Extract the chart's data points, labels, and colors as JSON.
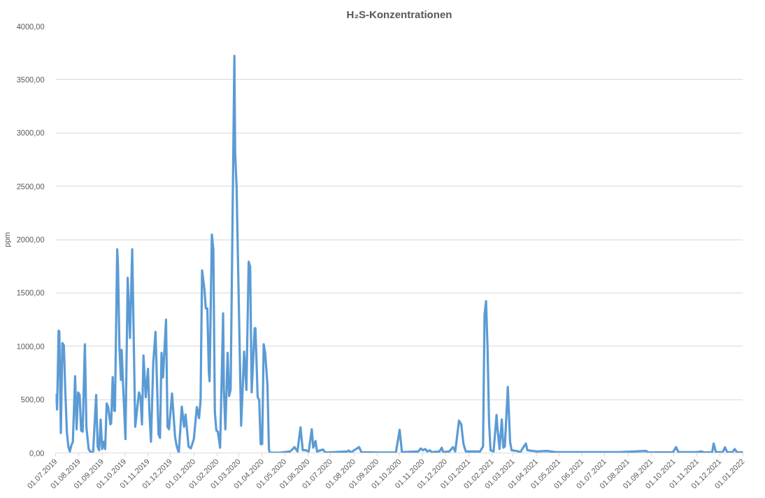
{
  "chart_data": {
    "type": "line",
    "title": "H₂S-Konzentrationen",
    "ylabel": "ppm",
    "x": [
      "2019-07-01",
      "2019-07-03",
      "2019-07-05",
      "2019-07-06",
      "2019-07-08",
      "2019-07-10",
      "2019-07-12",
      "2019-07-14",
      "2019-07-16",
      "2019-07-18",
      "2019-07-20",
      "2019-07-22",
      "2019-07-24",
      "2019-07-27",
      "2019-07-29",
      "2019-07-31",
      "2019-08-02",
      "2019-08-04",
      "2019-08-06",
      "2019-08-09",
      "2019-08-11",
      "2019-08-14",
      "2019-08-17",
      "2019-08-20",
      "2019-08-24",
      "2019-08-26",
      "2019-08-28",
      "2019-08-30",
      "2019-09-01",
      "2019-09-03",
      "2019-09-05",
      "2019-09-07",
      "2019-09-09",
      "2019-09-12",
      "2019-09-13",
      "2019-09-15",
      "2019-09-17",
      "2019-09-18",
      "2019-09-21",
      "2019-09-22",
      "2019-09-24",
      "2019-09-26",
      "2019-09-27",
      "2019-09-29",
      "2019-10-02",
      "2019-10-05",
      "2019-10-08",
      "2019-10-11",
      "2019-10-15",
      "2019-10-20",
      "2019-10-22",
      "2019-10-24",
      "2019-10-26",
      "2019-10-29",
      "2019-11-01",
      "2019-11-03",
      "2019-11-05",
      "2019-11-08",
      "2019-11-11",
      "2019-11-15",
      "2019-11-17",
      "2019-11-19",
      "2019-11-21",
      "2019-11-25",
      "2019-11-27",
      "2019-11-29",
      "2019-12-03",
      "2019-12-07",
      "2019-12-09",
      "2019-12-12",
      "2019-12-16",
      "2019-12-19",
      "2019-12-21",
      "2019-12-25",
      "2019-12-28",
      "2020-01-01",
      "2020-01-05",
      "2020-01-08",
      "2020-01-10",
      "2020-01-12",
      "2020-01-15",
      "2020-01-17",
      "2020-01-19",
      "2020-01-21",
      "2020-01-22",
      "2020-01-25",
      "2020-01-27",
      "2020-01-29",
      "2020-01-31",
      "2020-02-02",
      "2020-02-05",
      "2020-02-09",
      "2020-02-10",
      "2020-02-12",
      "2020-02-15",
      "2020-02-17",
      "2020-02-19",
      "2020-02-24",
      "2020-02-25",
      "2020-02-27",
      "2020-02-28",
      "2020-03-04",
      "2020-03-08",
      "2020-03-11",
      "2020-03-14",
      "2020-03-16",
      "2020-03-18",
      "2020-03-22",
      "2020-03-23",
      "2020-03-26",
      "2020-03-28",
      "2020-03-30",
      "2020-04-01",
      "2020-04-03",
      "2020-04-05",
      "2020-04-08",
      "2020-04-10",
      "2020-04-11",
      "2020-04-25",
      "2020-05-08",
      "2020-05-11",
      "2020-05-14",
      "2020-05-18",
      "2020-05-22",
      "2020-05-25",
      "2020-05-29",
      "2020-06-02",
      "2020-06-06",
      "2020-06-08",
      "2020-06-11",
      "2020-06-13",
      "2020-06-21",
      "2020-06-24",
      "2020-07-10",
      "2020-07-23",
      "2020-07-25",
      "2020-07-28",
      "2020-08-08",
      "2020-08-11",
      "2020-09-02",
      "2020-09-26",
      "2020-10-01",
      "2020-10-04",
      "2020-10-26",
      "2020-10-29",
      "2020-11-01",
      "2020-11-04",
      "2020-11-07",
      "2020-11-10",
      "2020-11-13",
      "2020-11-23",
      "2020-11-26",
      "2020-11-28",
      "2020-12-06",
      "2020-12-11",
      "2020-12-14",
      "2020-12-19",
      "2020-12-22",
      "2020-12-25",
      "2020-12-28",
      "2021-01-16",
      "2021-01-18",
      "2021-01-20",
      "2021-01-22",
      "2021-01-24",
      "2021-01-26",
      "2021-01-28",
      "2021-01-30",
      "2021-02-03",
      "2021-02-07",
      "2021-02-08",
      "2021-02-11",
      "2021-02-14",
      "2021-02-16",
      "2021-02-18",
      "2021-02-22",
      "2021-02-25",
      "2021-02-27",
      "2021-03-06",
      "2021-03-11",
      "2021-03-14",
      "2021-03-18",
      "2021-03-20",
      "2021-04-02",
      "2021-04-15",
      "2021-04-27",
      "2021-06-04",
      "2021-07-21",
      "2021-08-25",
      "2021-08-28",
      "2021-09-30",
      "2021-10-04",
      "2021-10-07",
      "2021-11-01",
      "2021-11-06",
      "2021-11-11",
      "2021-11-21",
      "2021-11-23",
      "2021-11-26",
      "2021-12-05",
      "2021-12-08",
      "2021-12-11",
      "2021-12-18",
      "2021-12-21",
      "2021-12-24",
      "2022-01-01"
    ],
    "series": [
      {
        "color": "#5b9bd5",
        "values": [
          545,
          407,
          1146,
          1137,
          187,
          1031,
          1007,
          568,
          199,
          60,
          14,
          72,
          106,
          719,
          222,
          568,
          545,
          210,
          199,
          1019,
          245,
          37,
          2,
          14,
          545,
          60,
          25,
          314,
          37,
          106,
          37,
          464,
          430,
          268,
          280,
          712,
          395,
          395,
          1909,
          1770,
          984,
          684,
          966,
          615,
          130,
          1643,
          1077,
          1909,
          245,
          568,
          522,
          268,
          915,
          522,
          788,
          360,
          106,
          846,
          1135,
          176,
          141,
          938,
          707,
          1250,
          245,
          222,
          557,
          153,
          72,
          2,
          434,
          245,
          360,
          60,
          42,
          130,
          430,
          326,
          499,
          1712,
          1539,
          1354,
          1354,
          753,
          672,
          2047,
          1909,
          383,
          210,
          200,
          49,
          1308,
          591,
          222,
          938,
          534,
          591,
          3722,
          2810,
          2487,
          2093,
          256,
          950,
          591,
          1793,
          1747,
          568,
          1169,
          1169,
          522,
          499,
          83,
          83,
          1019,
          938,
          638,
          37,
          2,
          2,
          14,
          32,
          55,
          14,
          240,
          25,
          25,
          14,
          222,
          49,
          111,
          14,
          32,
          5,
          9,
          14,
          23,
          5,
          55,
          7,
          5,
          5,
          217,
          7,
          14,
          42,
          25,
          37,
          14,
          25,
          7,
          14,
          49,
          7,
          14,
          55,
          14,
          303,
          268,
          83,
          14,
          14,
          37,
          60,
          1296,
          1423,
          984,
          291,
          25,
          14,
          356,
          245,
          37,
          314,
          49,
          60,
          619,
          106,
          25,
          18,
          10,
          46,
          88,
          25,
          14,
          19,
          7,
          7,
          7,
          19,
          5,
          7,
          55,
          7,
          7,
          14,
          5,
          7,
          88,
          7,
          7,
          53,
          7,
          7,
          37,
          5,
          7
        ]
      }
    ],
    "xlim": [
      "2019-07-01",
      "2022-01-01"
    ],
    "xticks": [
      {
        "value": "2019-07-01",
        "label": "01.07.2019"
      },
      {
        "value": "2019-08-01",
        "label": "01.08.2019"
      },
      {
        "value": "2019-09-01",
        "label": "01.09.2019"
      },
      {
        "value": "2019-10-01",
        "label": "01.10.2019"
      },
      {
        "value": "2019-11-01",
        "label": "01.11.2019"
      },
      {
        "value": "2019-12-01",
        "label": "01.12.2019"
      },
      {
        "value": "2020-01-01",
        "label": "01.01.2020"
      },
      {
        "value": "2020-02-01",
        "label": "01.02.2020"
      },
      {
        "value": "2020-03-01",
        "label": "01.03.2020"
      },
      {
        "value": "2020-04-01",
        "label": "01.04.2020"
      },
      {
        "value": "2020-05-01",
        "label": "01.05.2020"
      },
      {
        "value": "2020-06-01",
        "label": "01.06.2020"
      },
      {
        "value": "2020-07-01",
        "label": "01.07.2020"
      },
      {
        "value": "2020-08-01",
        "label": "01.08.2020"
      },
      {
        "value": "2020-09-01",
        "label": "01.09.2020"
      },
      {
        "value": "2020-10-01",
        "label": "01.10.2020"
      },
      {
        "value": "2020-11-01",
        "label": "01.11.2020"
      },
      {
        "value": "2020-12-01",
        "label": "01.12.2020"
      },
      {
        "value": "2021-01-01",
        "label": "01.01.2021"
      },
      {
        "value": "2021-02-01",
        "label": "01.02.2021"
      },
      {
        "value": "2021-03-01",
        "label": "01.03.2021"
      },
      {
        "value": "2021-04-01",
        "label": "01.04.2021"
      },
      {
        "value": "2021-05-01",
        "label": "01.05.2021"
      },
      {
        "value": "2021-06-01",
        "label": "01.06.2021"
      },
      {
        "value": "2021-07-01",
        "label": "01.07.2021"
      },
      {
        "value": "2021-08-01",
        "label": "01.08.2021"
      },
      {
        "value": "2021-09-01",
        "label": "01.09.2021"
      },
      {
        "value": "2021-10-01",
        "label": "01.10.2021"
      },
      {
        "value": "2021-11-01",
        "label": "01.11.2021"
      },
      {
        "value": "2021-12-01",
        "label": "01.12.2021"
      },
      {
        "value": "2022-01-01",
        "label": "01.01.2022"
      }
    ],
    "ylim": [
      0,
      4000
    ],
    "yticks": [
      {
        "value": 0,
        "label": "0,00"
      },
      {
        "value": 500,
        "label": "500,00"
      },
      {
        "value": 1000,
        "label": "1000,00"
      },
      {
        "value": 1500,
        "label": "1500,00"
      },
      {
        "value": 2000,
        "label": "2000,00"
      },
      {
        "value": 2500,
        "label": "2500,00"
      },
      {
        "value": 3000,
        "label": "3000,00"
      },
      {
        "value": 3500,
        "label": "3500,00"
      },
      {
        "value": 4000,
        "label": "4000,00"
      }
    ],
    "grid": "y"
  }
}
